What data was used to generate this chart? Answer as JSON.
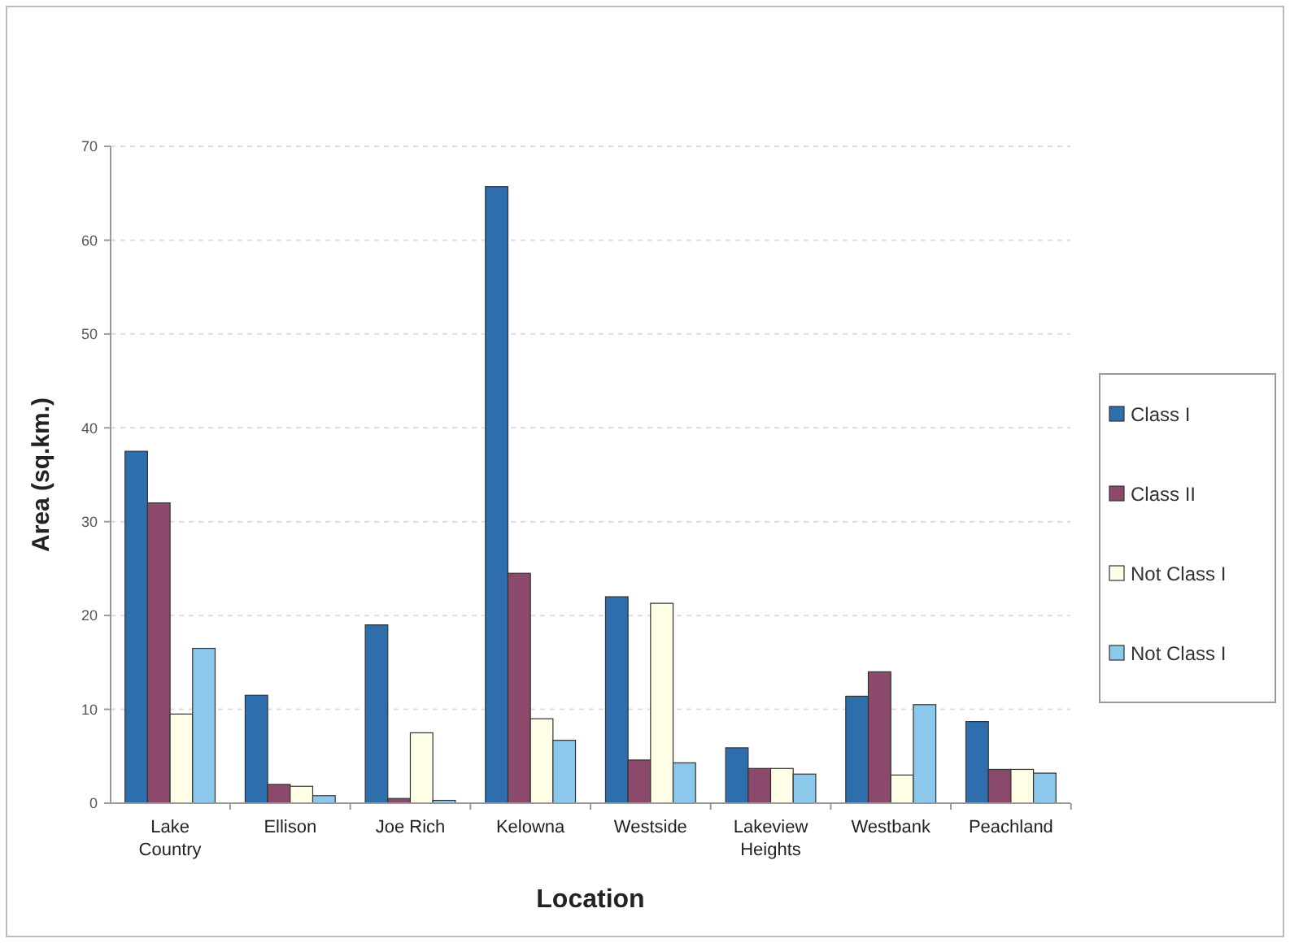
{
  "chart_data": {
    "type": "bar",
    "xlabel": "Location",
    "ylabel": "Area (sq.km.)",
    "categories": [
      "Lake Country",
      "Ellison",
      "Joe Rich",
      "Kelowna",
      "Westside",
      "Lakeview Heights",
      "Westbank",
      "Peachland"
    ],
    "series": [
      {
        "name": "Class I",
        "color": "#2e6ead",
        "values": [
          37.5,
          11.5,
          19,
          65.7,
          22,
          5.9,
          11.4,
          8.7
        ]
      },
      {
        "name": "Class II",
        "color": "#8b4a6b",
        "values": [
          32,
          2,
          0.5,
          24.5,
          4.6,
          3.7,
          14,
          3.6
        ]
      },
      {
        "name": "Not Class I",
        "color": "#ffffe8",
        "values": [
          9.5,
          1.8,
          7.5,
          9,
          21.3,
          3.7,
          3,
          3.6
        ]
      },
      {
        "name": "Not Class I",
        "color": "#8cc8ec",
        "values": [
          16.5,
          0.8,
          0.3,
          6.7,
          4.3,
          3.1,
          10.5,
          3.2
        ]
      }
    ],
    "ylim": [
      0,
      70
    ],
    "yticks": [
      0,
      10,
      20,
      30,
      40,
      50,
      60,
      70
    ],
    "grid": "y",
    "legend": "right"
  }
}
